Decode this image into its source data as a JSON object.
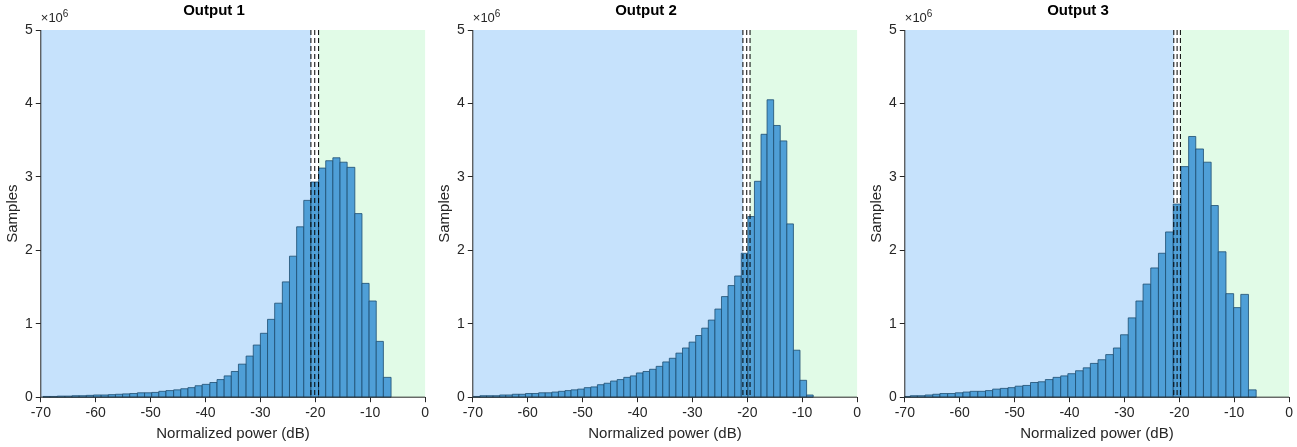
{
  "chart_data": [
    {
      "type": "histogram",
      "title": "Output 1",
      "xlabel": "Normalized power (dB)",
      "ylabel": "Samples",
      "color": "#4f9fd7",
      "xlim": [
        -70,
        0
      ],
      "ylim": [
        0,
        5
      ],
      "xticks": [
        -70,
        -60,
        -50,
        -40,
        -30,
        -20,
        -10,
        0
      ],
      "yticks": [
        0,
        1,
        2,
        3,
        4,
        5
      ],
      "annotations": [
        "×10$^{6}$"
      ],
      "bins": [
        -69.6,
        -68.3,
        -67.0,
        -65.6,
        -64.3,
        -63.0,
        -61.7,
        -60.4,
        -59.0,
        -57.7,
        -56.4,
        -55.1,
        -53.8,
        -52.4,
        -51.1,
        -49.8,
        -48.5,
        -47.2,
        -45.8,
        -44.5,
        -43.2,
        -41.9,
        -40.6,
        -39.2,
        -37.9,
        -36.6,
        -35.3,
        -34.0,
        -32.6,
        -31.3,
        -30.0,
        -28.7,
        -27.4,
        -26.0,
        -24.7,
        -23.4,
        -22.1,
        -20.8,
        -19.4,
        -18.1,
        -16.8,
        -15.5,
        -14.2,
        -12.8,
        -11.5,
        -10.2,
        -8.9,
        -7.6,
        -6.2
      ],
      "values": [
        0.01,
        0.01,
        0.015,
        0.015,
        0.02,
        0.02,
        0.025,
        0.03,
        0.03,
        0.035,
        0.04,
        0.045,
        0.05,
        0.06,
        0.06,
        0.065,
        0.08,
        0.09,
        0.1,
        0.115,
        0.13,
        0.156,
        0.175,
        0.2,
        0.24,
        0.29,
        0.35,
        0.45,
        0.56,
        0.71,
        0.87,
        1.06,
        1.28,
        1.57,
        1.92,
        2.32,
        2.68,
        2.93,
        3.12,
        3.22,
        3.26,
        3.2,
        3.13,
        2.5,
        1.55,
        1.31,
        0.76,
        0.27
      ],
      "bands": [
        {
          "axis": "x",
          "from": -70,
          "to": -20.8,
          "color": "#c6e2fc"
        },
        {
          "axis": "x",
          "from": -19.4,
          "to": 0,
          "color": "#e1fbe7"
        }
      ],
      "ref_lines": [
        {
          "axis": "x",
          "value": -20.8,
          "color": "#000000",
          "line_style": "dashed"
        },
        {
          "axis": "x",
          "value": -20.1,
          "color": "#000000",
          "line_style": "dashed"
        },
        {
          "axis": "x",
          "value": -19.4,
          "color": "#000000",
          "line_style": "dashed"
        }
      ]
    },
    {
      "type": "histogram",
      "title": "Output 2",
      "xlabel": "Normalized power (dB)",
      "ylabel": "Samples",
      "color": "#4f9fd7",
      "xlim": [
        -70,
        0
      ],
      "ylim": [
        0,
        5
      ],
      "xticks": [
        -70,
        -60,
        -50,
        -40,
        -30,
        -20,
        -10,
        0
      ],
      "yticks": [
        0,
        1,
        2,
        3,
        4,
        5
      ],
      "annotations": [
        "×10$^{6}$"
      ],
      "bins": [
        -69.9,
        -68.7,
        -67.5,
        -66.3,
        -65.1,
        -64.0,
        -62.8,
        -61.6,
        -60.4,
        -59.2,
        -58.0,
        -56.8,
        -55.6,
        -54.4,
        -53.2,
        -52.1,
        -50.9,
        -49.7,
        -48.5,
        -47.3,
        -46.1,
        -44.9,
        -43.7,
        -42.5,
        -41.3,
        -40.2,
        -39.0,
        -37.8,
        -36.6,
        -35.4,
        -34.2,
        -33.0,
        -31.8,
        -30.6,
        -29.4,
        -28.3,
        -27.1,
        -25.9,
        -24.7,
        -23.5,
        -22.3,
        -21.1,
        -19.9,
        -18.7,
        -17.5,
        -16.4,
        -15.2,
        -14.0,
        -12.8,
        -11.6,
        -10.4,
        -9.2,
        -8.0
      ],
      "values": [
        0.01,
        0.02,
        0.02,
        0.02,
        0.03,
        0.03,
        0.04,
        0.04,
        0.05,
        0.05,
        0.06,
        0.06,
        0.07,
        0.08,
        0.09,
        0.1,
        0.11,
        0.13,
        0.14,
        0.17,
        0.19,
        0.22,
        0.24,
        0.27,
        0.29,
        0.33,
        0.35,
        0.38,
        0.42,
        0.48,
        0.53,
        0.6,
        0.67,
        0.75,
        0.84,
        0.94,
        1.05,
        1.2,
        1.37,
        1.52,
        1.65,
        1.96,
        2.46,
        2.94,
        3.58,
        4.05,
        3.7,
        3.49,
        2.36,
        0.64,
        0.23,
        0.03
      ],
      "bands": [
        {
          "axis": "x",
          "from": -70,
          "to": -20.8,
          "color": "#c6e2fc"
        },
        {
          "axis": "x",
          "from": -19.5,
          "to": 0,
          "color": "#e1fbe7"
        }
      ],
      "ref_lines": [
        {
          "axis": "x",
          "value": -20.8,
          "color": "#000000",
          "line_style": "dashed"
        },
        {
          "axis": "x",
          "value": -20.1,
          "color": "#000000",
          "line_style": "dashed"
        },
        {
          "axis": "x",
          "value": -19.5,
          "color": "#000000",
          "line_style": "dashed"
        }
      ]
    },
    {
      "type": "histogram",
      "title": "Output 3",
      "xlabel": "Normalized power (dB)",
      "ylabel": "Samples",
      "color": "#4f9fd7",
      "xlim": [
        -70,
        0
      ],
      "ylim": [
        0,
        5
      ],
      "xticks": [
        -70,
        -60,
        -50,
        -40,
        -30,
        -20,
        -10,
        0
      ],
      "yticks": [
        0,
        1,
        2,
        3,
        4,
        5
      ],
      "annotations": [
        "×10$^{6}$"
      ],
      "bins": [
        -70.0,
        -69.0,
        -67.7,
        -66.3,
        -64.9,
        -63.6,
        -62.2,
        -60.8,
        -59.4,
        -58.1,
        -56.7,
        -55.3,
        -54.0,
        -52.6,
        -51.2,
        -49.9,
        -48.5,
        -47.1,
        -45.7,
        -44.4,
        -43.0,
        -41.6,
        -40.3,
        -38.9,
        -37.5,
        -36.2,
        -34.8,
        -33.4,
        -32.0,
        -30.7,
        -29.3,
        -27.9,
        -26.6,
        -25.2,
        -23.8,
        -22.5,
        -21.1,
        -19.7,
        -18.3,
        -17.0,
        -15.6,
        -14.2,
        -12.9,
        -11.5,
        -10.1,
        -8.8,
        -7.4,
        -6.0
      ],
      "values": [
        0.01,
        0.02,
        0.02,
        0.03,
        0.04,
        0.05,
        0.05,
        0.06,
        0.07,
        0.08,
        0.08,
        0.09,
        0.11,
        0.12,
        0.13,
        0.15,
        0.16,
        0.2,
        0.21,
        0.24,
        0.27,
        0.29,
        0.32,
        0.36,
        0.4,
        0.46,
        0.51,
        0.58,
        0.67,
        0.85,
        1.08,
        1.31,
        1.54,
        1.76,
        1.96,
        2.25,
        2.63,
        3.14,
        3.55,
        3.38,
        3.2,
        2.61,
        1.98,
        1.41,
        1.22,
        1.4,
        0.1
      ],
      "bands": [
        {
          "axis": "x",
          "from": -70,
          "to": -21.0,
          "color": "#c6e2fc"
        },
        {
          "axis": "x",
          "from": -19.8,
          "to": 0,
          "color": "#e1fbe7"
        }
      ],
      "ref_lines": [
        {
          "axis": "x",
          "value": -21.0,
          "color": "#000000",
          "line_style": "dashed"
        },
        {
          "axis": "x",
          "value": -20.4,
          "color": "#000000",
          "line_style": "dashed"
        },
        {
          "axis": "x",
          "value": -19.8,
          "color": "#000000",
          "line_style": "dashed"
        }
      ]
    }
  ]
}
